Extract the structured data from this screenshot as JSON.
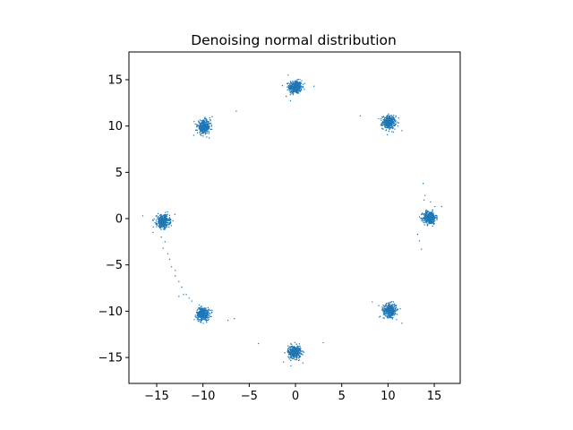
{
  "chart_data": {
    "type": "scatter",
    "title": "Denoising normal distribution",
    "xlabel": "",
    "ylabel": "",
    "xlim": [
      -18,
      17.8
    ],
    "ylim": [
      -17.8,
      18
    ],
    "xticks": [
      -15,
      -10,
      -5,
      0,
      5,
      10,
      15
    ],
    "yticks": [
      -15,
      -10,
      -5,
      0,
      5,
      10,
      15
    ],
    "xtick_labels": [
      "−15",
      "−10",
      "−5",
      "0",
      "5",
      "10",
      "15"
    ],
    "ytick_labels": [
      "−15",
      "−10",
      "−5",
      "0",
      "5",
      "10",
      "15"
    ],
    "grid": false,
    "marker_color": "#1f77b4",
    "clusters": [
      {
        "center": [
          0,
          14.2
        ],
        "spread": 0.35,
        "count": 380
      },
      {
        "center": [
          10.1,
          10.4
        ],
        "spread": 0.35,
        "count": 380
      },
      {
        "center": [
          14.5,
          0.1
        ],
        "spread": 0.35,
        "count": 380
      },
      {
        "center": [
          10.2,
          -9.9
        ],
        "spread": 0.35,
        "count": 380
      },
      {
        "center": [
          -0.1,
          -14.4
        ],
        "spread": 0.35,
        "count": 380
      },
      {
        "center": [
          -10.0,
          -10.3
        ],
        "spread": 0.35,
        "count": 380
      },
      {
        "center": [
          -14.3,
          -0.3
        ],
        "spread": 0.35,
        "count": 380
      },
      {
        "center": [
          -9.9,
          9.9
        ],
        "spread": 0.35,
        "count": 380
      }
    ],
    "outliers": [
      [
        -6.4,
        11.6
      ],
      [
        7.0,
        11.1
      ],
      [
        1.0,
        14.6
      ],
      [
        2.0,
        14.3
      ],
      [
        -1.0,
        13.2
      ],
      [
        13.8,
        3.8
      ],
      [
        14.0,
        2.5
      ],
      [
        13.9,
        2.0
      ],
      [
        14.6,
        1.8
      ],
      [
        13.4,
        -2.4
      ],
      [
        13.6,
        -3.3
      ],
      [
        13.2,
        -1.7
      ],
      [
        15.8,
        1.3
      ],
      [
        -16.5,
        0.3
      ],
      [
        -15.4,
        -1.5
      ],
      [
        -14.5,
        -2.0
      ],
      [
        -14.1,
        -2.5
      ],
      [
        -14.3,
        -3.2
      ],
      [
        -13.8,
        -3.8
      ],
      [
        -13.6,
        -4.4
      ],
      [
        -13.4,
        -5.2
      ],
      [
        -13.0,
        -5.6
      ],
      [
        -13.0,
        -6.2
      ],
      [
        -12.6,
        -6.8
      ],
      [
        -12.3,
        -7.4
      ],
      [
        -12.1,
        -8.2
      ],
      [
        -11.8,
        -8.2
      ],
      [
        -11.5,
        -8.6
      ],
      [
        -12.6,
        -8.4
      ],
      [
        -11.2,
        -8.9
      ],
      [
        -7.3,
        -11.0
      ],
      [
        -6.6,
        -10.8
      ],
      [
        -4.0,
        -13.5
      ],
      [
        3.0,
        -13.4
      ],
      [
        -1.3,
        -15.5
      ],
      [
        9.0,
        -9.4
      ],
      [
        11.5,
        -11.3
      ],
      [
        8.3,
        -9.0
      ],
      [
        -0.8,
        15.5
      ],
      [
        11.5,
        9.5
      ],
      [
        9.0,
        10.8
      ],
      [
        -11.0,
        9.0
      ],
      [
        -9.0,
        11.0
      ],
      [
        0.8,
        -15.6
      ],
      [
        -0.5,
        -15.9
      ]
    ]
  }
}
